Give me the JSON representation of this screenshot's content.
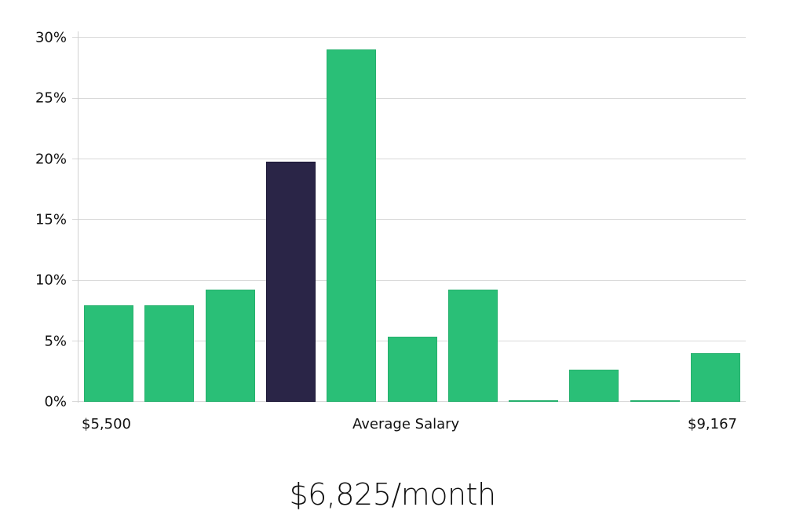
{
  "chart_data": {
    "type": "bar",
    "title": "",
    "xlabel": "Average Salary",
    "ylabel": "",
    "x_range_labels": [
      "$5,500",
      "$9,167"
    ],
    "categories": [
      "Bin 1",
      "Bin 2",
      "Bin 3",
      "Bin 4",
      "Bin 5",
      "Bin 6",
      "Bin 7",
      "Bin 8",
      "Bin 9",
      "Bin 10",
      "Bin 11"
    ],
    "values": [
      7.95,
      7.95,
      9.24,
      19.8,
      29.0,
      5.37,
      9.24,
      0.1,
      2.65,
      0.1,
      4.0
    ],
    "highlighted_index": 3,
    "yticks": [
      "0%",
      "5%",
      "10%",
      "15%",
      "20%",
      "25%",
      "30%"
    ],
    "ylim": [
      0,
      30
    ],
    "grid": true,
    "legend": null,
    "colors": {
      "bar": "#2abf77",
      "highlight": "#2a2547",
      "grid": "#d9d9d9"
    }
  },
  "axis": {
    "y_ticks": [
      "30%",
      "25%",
      "20%",
      "15%",
      "10%",
      "5%",
      "0%"
    ],
    "x_left": "$5,500",
    "x_center": "Average Salary",
    "x_right": "$9,167"
  },
  "footer": {
    "value": "$6,825/month"
  }
}
